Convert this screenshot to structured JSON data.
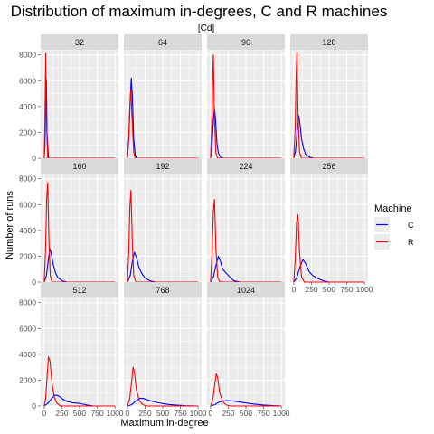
{
  "chart_data": {
    "type": "line",
    "title": "Distribution of maximum in-degrees, C and R machines",
    "subtitle": "[Cd]",
    "xlabel": "Maximum in-degree",
    "ylabel": "Number of runs",
    "xlim": [
      -50,
      1050
    ],
    "ylim": [
      0,
      8400
    ],
    "x_ticks": [
      0,
      250,
      500,
      750,
      1000
    ],
    "y_ticks": [
      0,
      2000,
      4000,
      6000,
      8000
    ],
    "grid": true,
    "legend": {
      "title": "Machine",
      "position": "right",
      "entries": [
        {
          "label": "C",
          "color": "#0000ff"
        },
        {
          "label": "R",
          "color": "#ff0000"
        }
      ]
    },
    "colors": {
      "C": "#0000ff",
      "R": "#ff0000"
    },
    "panels": [
      {
        "label": "32",
        "series": [
          {
            "name": "C",
            "x": [
              0,
              10,
              20,
              30,
              40,
              60,
              1000
            ],
            "y": [
              0,
              1000,
              4000,
              6100,
              2000,
              0,
              0
            ]
          },
          {
            "name": "R",
            "x": [
              0,
              10,
              20,
              30,
              50,
              1000
            ],
            "y": [
              0,
              3000,
              8100,
              3000,
              0,
              0
            ]
          }
        ]
      },
      {
        "label": "64",
        "series": [
          {
            "name": "C",
            "x": [
              0,
              20,
              40,
              55,
              70,
              90,
              110,
              130,
              1000
            ],
            "y": [
              0,
              1500,
              4500,
              6200,
              4800,
              1500,
              300,
              0,
              0
            ]
          },
          {
            "name": "R",
            "x": [
              0,
              20,
              35,
              50,
              70,
              90,
              110,
              1000
            ],
            "y": [
              0,
              1800,
              4000,
              5300,
              2500,
              500,
              0,
              0
            ]
          }
        ]
      },
      {
        "label": "96",
        "series": [
          {
            "name": "C",
            "x": [
              0,
              20,
              40,
              55,
              70,
              90,
              110,
              140,
              180,
              1000
            ],
            "y": [
              0,
              1000,
              3000,
              3900,
              3000,
              1200,
              400,
              100,
              0,
              0
            ]
          },
          {
            "name": "R",
            "x": [
              0,
              15,
              30,
              40,
              55,
              75,
              100,
              1000
            ],
            "y": [
              0,
              2500,
              6500,
              8000,
              3000,
              400,
              0,
              0
            ]
          }
        ]
      },
      {
        "label": "128",
        "series": [
          {
            "name": "C",
            "x": [
              0,
              25,
              50,
              70,
              90,
              110,
              140,
              170,
              220,
              280,
              1000
            ],
            "y": [
              0,
              600,
              2200,
              3300,
              2600,
              1500,
              700,
              300,
              100,
              0,
              0
            ]
          },
          {
            "name": "R",
            "x": [
              0,
              20,
              35,
              45,
              60,
              80,
              110,
              1000
            ],
            "y": [
              0,
              2500,
              6500,
              8200,
              3500,
              500,
              0,
              0
            ]
          }
        ]
      },
      {
        "label": "160",
        "series": [
          {
            "name": "C",
            "x": [
              0,
              30,
              60,
              80,
              100,
              130,
              160,
              200,
              260,
              320,
              1000
            ],
            "y": [
              0,
              500,
              1800,
              2600,
              2200,
              1300,
              700,
              300,
              100,
              0,
              0
            ]
          },
          {
            "name": "R",
            "x": [
              0,
              20,
              35,
              50,
              65,
              85,
              110,
              1000
            ],
            "y": [
              0,
              2800,
              6500,
              7700,
              3500,
              500,
              0,
              0
            ]
          }
        ]
      },
      {
        "label": "192",
        "series": [
          {
            "name": "C",
            "x": [
              0,
              40,
              70,
              100,
              130,
              160,
              200,
              250,
              320,
              400,
              1000
            ],
            "y": [
              0,
              500,
              1600,
              2300,
              1900,
              1200,
              700,
              300,
              100,
              0,
              0
            ]
          },
          {
            "name": "R",
            "x": [
              0,
              20,
              35,
              50,
              70,
              90,
              120,
              1000
            ],
            "y": [
              0,
              2500,
              5800,
              7100,
              3000,
              500,
              0,
              0
            ]
          }
        ]
      },
      {
        "label": "224",
        "series": [
          {
            "name": "C",
            "x": [
              0,
              40,
              80,
              110,
              140,
              170,
              220,
              270,
              330,
              420,
              1000
            ],
            "y": [
              0,
              400,
              1400,
              2000,
              1600,
              1000,
              700,
              400,
              100,
              0,
              0
            ]
          },
          {
            "name": "R",
            "x": [
              0,
              20,
              40,
              55,
              75,
              100,
              130,
              1000
            ],
            "y": [
              0,
              2300,
              5500,
              6400,
              2600,
              400,
              0,
              0
            ]
          }
        ]
      },
      {
        "label": "256",
        "series": [
          {
            "name": "C",
            "x": [
              0,
              40,
              90,
              130,
              170,
              220,
              270,
              330,
              420,
              500,
              1000
            ],
            "y": [
              0,
              300,
              1200,
              1750,
              1400,
              800,
              500,
              300,
              100,
              0,
              0
            ]
          },
          {
            "name": "R",
            "x": [
              0,
              20,
              40,
              60,
              80,
              110,
              150,
              1000
            ],
            "y": [
              0,
              1800,
              4600,
              5200,
              2400,
              400,
              0,
              0
            ]
          }
        ]
      },
      {
        "label": "512",
        "series": [
          {
            "name": "C",
            "x": [
              0,
              50,
              100,
              150,
              200,
              260,
              320,
              400,
              500,
              600,
              700,
              1000
            ],
            "y": [
              0,
              200,
              550,
              850,
              800,
              550,
              350,
              250,
              200,
              80,
              0,
              0
            ]
          },
          {
            "name": "R",
            "x": [
              0,
              20,
              40,
              60,
              80,
              110,
              140,
              180,
              230,
              1000
            ],
            "y": [
              0,
              600,
              2200,
              3800,
              3500,
              1800,
              700,
              200,
              0,
              0
            ]
          }
        ]
      },
      {
        "label": "768",
        "series": [
          {
            "name": "C",
            "x": [
              0,
              60,
              120,
              180,
              230,
              300,
              380,
              480,
              580,
              700,
              820,
              1000
            ],
            "y": [
              0,
              100,
              400,
              600,
              580,
              450,
              320,
              200,
              120,
              60,
              20,
              0
            ]
          },
          {
            "name": "R",
            "x": [
              0,
              30,
              60,
              80,
              100,
              130,
              170,
              220,
              280,
              1000
            ],
            "y": [
              0,
              500,
              1900,
              3000,
              2600,
              1200,
              400,
              100,
              0,
              0
            ]
          }
        ]
      },
      {
        "label": "1024",
        "series": [
          {
            "name": "C",
            "x": [
              0,
              60,
              120,
              180,
              250,
              330,
              420,
              520,
              620,
              750,
              880,
              1000
            ],
            "y": [
              0,
              100,
              300,
              400,
              420,
              380,
              300,
              220,
              150,
              80,
              30,
              0
            ]
          },
          {
            "name": "R",
            "x": [
              0,
              30,
              60,
              80,
              100,
              130,
              170,
              220,
              280,
              1000
            ],
            "y": [
              0,
              500,
              1700,
              2500,
              2200,
              1000,
              350,
              80,
              0,
              0
            ]
          }
        ]
      }
    ]
  }
}
